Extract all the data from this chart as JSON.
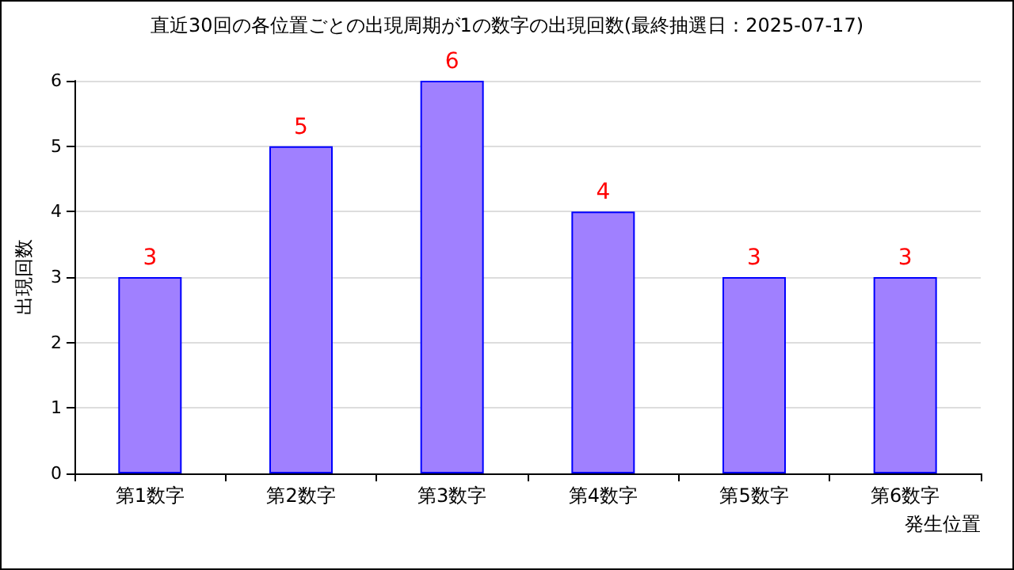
{
  "chart_data": {
    "type": "bar",
    "title": "直近30回の各位置ごとの出現周期が1の数字の出現回数(最終抽選日：2025-07-17)",
    "xlabel": "発生位置",
    "ylabel": "出現回数",
    "categories": [
      "第1数字",
      "第2数字",
      "第3数字",
      "第4数字",
      "第5数字",
      "第6数字"
    ],
    "values": [
      3,
      5,
      6,
      4,
      3,
      3
    ],
    "color": "#a080ff",
    "ylim": [
      0,
      6
    ],
    "yticks": [
      0,
      1,
      2,
      3,
      4,
      5,
      6
    ],
    "grid": "y",
    "data_labels": true
  }
}
